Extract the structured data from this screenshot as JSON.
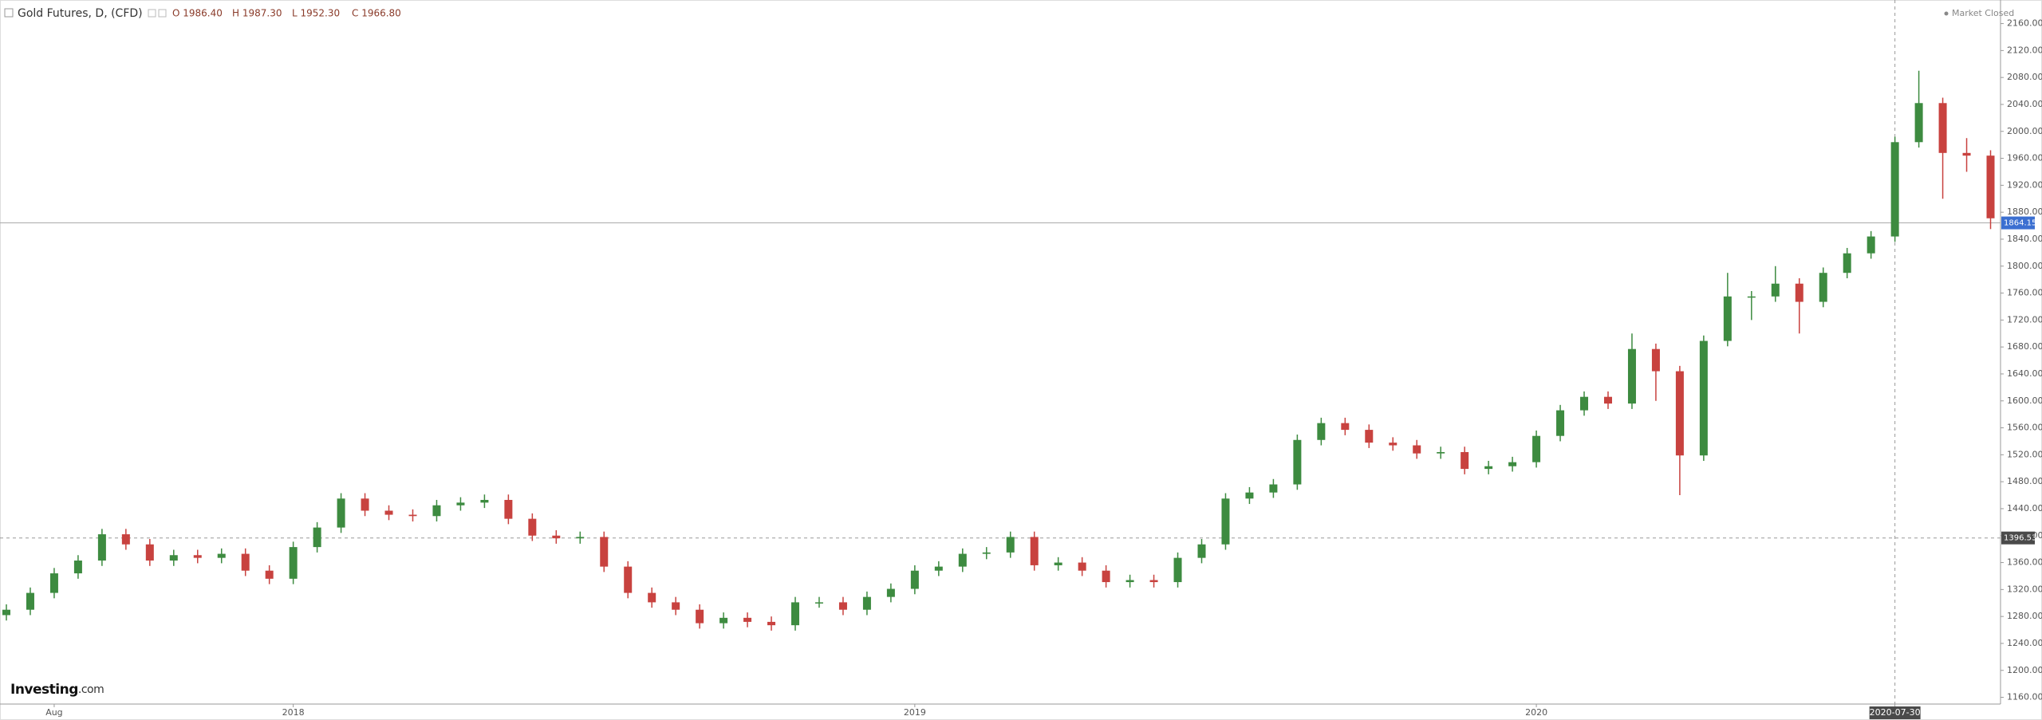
{
  "chart_data": {
    "type": "candlestick",
    "title": "Gold Futures, D, (CFD)",
    "ohlc_header": [
      "O 1986.40",
      "H 1987.30",
      "L 1952.30",
      "C 1966.80"
    ],
    "status": "Market Closed",
    "logo_main": "Investing",
    "logo_suffix": ".com",
    "categories": [
      null,
      null,
      "Aug",
      null,
      null,
      null,
      null,
      null,
      null,
      null,
      null,
      null,
      "2018",
      null,
      null,
      null,
      null,
      null,
      null,
      null,
      null,
      null,
      null,
      null,
      null,
      null,
      null,
      null,
      null,
      null,
      null,
      null,
      null,
      null,
      null,
      null,
      null,
      null,
      "2019",
      null,
      null,
      null,
      null,
      null,
      null,
      null,
      null,
      null,
      null,
      null,
      null,
      null,
      null,
      null,
      null,
      null,
      null,
      null,
      null,
      null,
      null,
      null,
      null,
      null,
      "2020",
      null,
      null,
      null,
      null,
      null,
      null,
      null,
      null,
      null,
      null,
      null,
      null,
      null,
      null,
      "2020-07-30",
      null,
      null,
      null,
      null
    ],
    "open": [
      1282,
      1290,
      1315,
      1344,
      1363,
      1402,
      1387,
      1363,
      1371,
      1367,
      1373,
      1348,
      1336,
      1383,
      1412,
      1455,
      1437,
      1431,
      1429,
      1445,
      1449,
      1453,
      1425,
      1400,
      1396,
      1398,
      1354,
      1315,
      1301,
      1290,
      1270,
      1278,
      1272,
      1267,
      1301,
      1301,
      1290,
      1309,
      1321,
      1348,
      1354,
      1373,
      1375,
      1398,
      1356,
      1360,
      1348,
      1331,
      1334,
      1331,
      1367,
      1387,
      1455,
      1464,
      1476,
      1542,
      1567,
      1557,
      1538,
      1534,
      1522,
      1524,
      1499,
      1503,
      1509,
      1548,
      1586,
      1606,
      1596,
      1677,
      1644,
      1519,
      1689,
      1755,
      1755,
      1774,
      1747,
      1790,
      1819,
      1844,
      1984,
      2042,
      1968,
      1964
    ],
    "high": [
      1298,
      1323,
      1352,
      1371,
      1410,
      1410,
      1395,
      1379,
      1379,
      1381,
      1381,
      1356,
      1391,
      1420,
      1463,
      1463,
      1445,
      1439,
      1453,
      1457,
      1461,
      1461,
      1433,
      1408,
      1406,
      1406,
      1362,
      1323,
      1309,
      1298,
      1286,
      1286,
      1280,
      1309,
      1309,
      1309,
      1317,
      1329,
      1356,
      1362,
      1381,
      1383,
      1406,
      1406,
      1368,
      1368,
      1356,
      1342,
      1342,
      1375,
      1395,
      1463,
      1472,
      1484,
      1550,
      1575,
      1575,
      1565,
      1546,
      1542,
      1532,
      1532,
      1511,
      1517,
      1556,
      1594,
      1614,
      1614,
      1700,
      1685,
      1652,
      1697,
      1790,
      1763,
      1800,
      1782,
      1798,
      1827,
      1852,
      1992,
      2090,
      2050,
      1990,
      1972
    ],
    "low": [
      1274,
      1282,
      1307,
      1336,
      1355,
      1379,
      1355,
      1355,
      1359,
      1359,
      1340,
      1328,
      1328,
      1375,
      1404,
      1429,
      1423,
      1421,
      1421,
      1437,
      1441,
      1417,
      1392,
      1388,
      1388,
      1346,
      1307,
      1293,
      1282,
      1262,
      1262,
      1264,
      1259,
      1259,
      1293,
      1282,
      1282,
      1301,
      1313,
      1340,
      1346,
      1365,
      1367,
      1348,
      1348,
      1340,
      1323,
      1323,
      1323,
      1323,
      1359,
      1379,
      1447,
      1456,
      1468,
      1534,
      1549,
      1530,
      1526,
      1514,
      1514,
      1491,
      1491,
      1495,
      1501,
      1540,
      1578,
      1588,
      1588,
      1600,
      1460,
      1511,
      1681,
      1720,
      1747,
      1700,
      1739,
      1782,
      1811,
      1836,
      1976,
      1900,
      1940,
      1855
    ],
    "close": [
      1290,
      1315,
      1344,
      1363,
      1402,
      1387,
      1363,
      1371,
      1367,
      1373,
      1348,
      1336,
      1383,
      1412,
      1455,
      1437,
      1431,
      1429,
      1445,
      1449,
      1453,
      1425,
      1400,
      1396,
      1398,
      1354,
      1315,
      1301,
      1290,
      1270,
      1278,
      1272,
      1267,
      1301,
      1301,
      1290,
      1309,
      1321,
      1348,
      1354,
      1373,
      1375,
      1398,
      1356,
      1360,
      1348,
      1331,
      1334,
      1331,
      1367,
      1387,
      1455,
      1464,
      1476,
      1542,
      1567,
      1557,
      1538,
      1534,
      1522,
      1524,
      1499,
      1503,
      1509,
      1548,
      1586,
      1606,
      1596,
      1677,
      1644,
      1519,
      1689,
      1755,
      1755,
      1774,
      1747,
      1790,
      1819,
      1844,
      1984,
      2042,
      1968,
      1964,
      1871
    ],
    "up_color": "#3d8b40",
    "down_color": "#c8423f",
    "last_price": 1864.15,
    "crosshair_price": 1396.53,
    "ylim": [
      1150,
      2195
    ],
    "yticks": [
      {
        "value": 1160,
        "label": "1160.00"
      },
      {
        "value": 1200,
        "label": "1200.00"
      },
      {
        "value": 1240,
        "label": "1240.00"
      },
      {
        "value": 1280,
        "label": "1280.00"
      },
      {
        "value": 1320,
        "label": "1320.00"
      },
      {
        "value": 1360,
        "label": "1360.00"
      },
      {
        "value": 1400,
        "label": "1400.00"
      },
      {
        "value": 1440,
        "label": "1440.00"
      },
      {
        "value": 1480,
        "label": "1480.00"
      },
      {
        "value": 1520,
        "label": "1520.00"
      },
      {
        "value": 1560,
        "label": "1560.00"
      },
      {
        "value": 1600,
        "label": "1600.00"
      },
      {
        "value": 1640,
        "label": "1640.00"
      },
      {
        "value": 1680,
        "label": "1680.00"
      },
      {
        "value": 1720,
        "label": "1720.00"
      },
      {
        "value": 1760,
        "label": "1760.00"
      },
      {
        "value": 1800,
        "label": "1800.00"
      },
      {
        "value": 1840,
        "label": "1840.00"
      },
      {
        "value": 1880,
        "label": "1880.00"
      },
      {
        "value": 1920,
        "label": "1920.00"
      },
      {
        "value": 1960,
        "label": "1960.00"
      },
      {
        "value": 2000,
        "label": "2000.00"
      },
      {
        "value": 2040,
        "label": "2040.00"
      },
      {
        "value": 2080,
        "label": "2080.00"
      },
      {
        "value": 2120,
        "label": "2120.00"
      },
      {
        "value": 2160,
        "label": "2160.00"
      }
    ]
  }
}
